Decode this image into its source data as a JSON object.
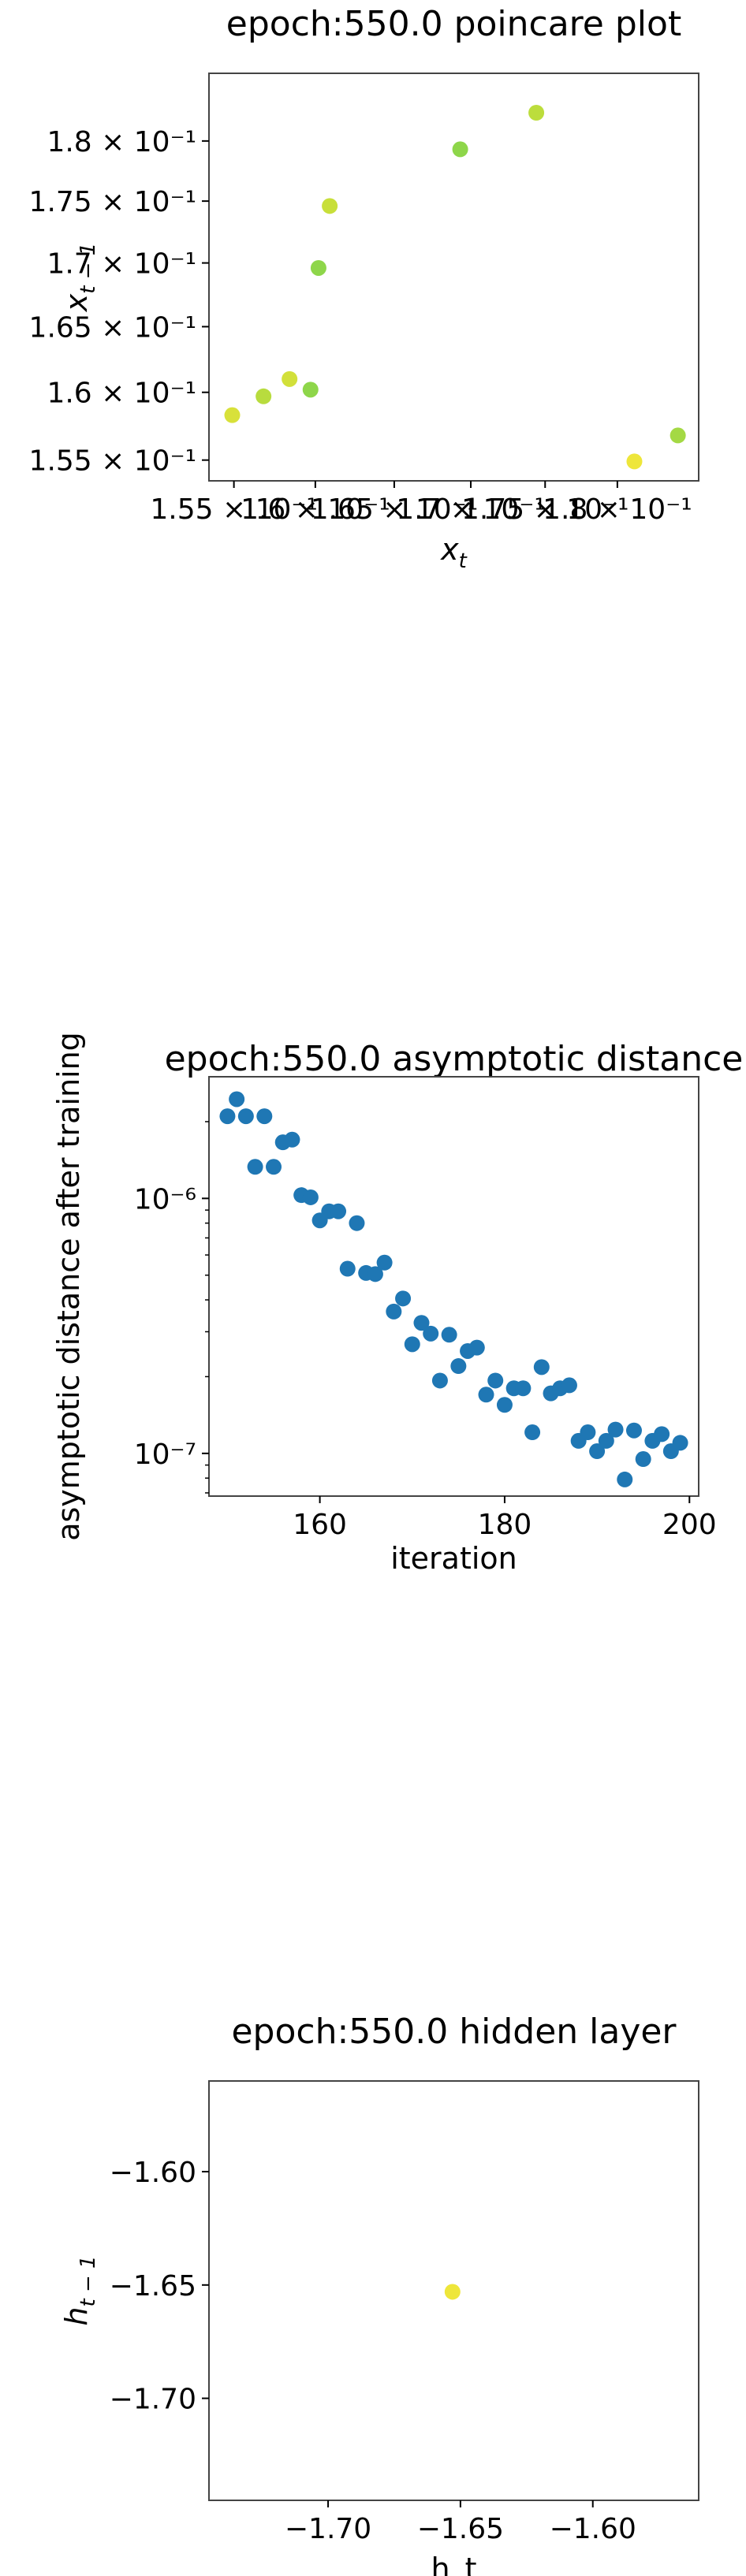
{
  "chart_data": [
    {
      "type": "scatter",
      "title": "epoch:550.0 poincare plot",
      "xlabel": "x_t",
      "ylabel": "x_{t-1}",
      "scale": "log",
      "xlim": [
        0.1535,
        0.1858
      ],
      "ylim": [
        0.1535,
        0.1858
      ],
      "x_ticks": [
        0.155,
        0.16,
        0.165,
        0.17,
        0.175,
        0.18
      ],
      "x_tick_labels": [
        "1.55 × 10⁻¹",
        "1.6 × 10⁻¹",
        "1.65 × 10⁻¹",
        "1.7 × 10⁻¹",
        "1.75 × 10⁻¹",
        "1.8 × 10⁻¹"
      ],
      "y_ticks": [
        0.155,
        0.16,
        0.165,
        0.17,
        0.175,
        0.18
      ],
      "y_tick_labels": [
        "1.55 × 10⁻¹",
        "1.6 × 10⁻¹",
        "1.65 × 10⁻¹",
        "1.7 × 10⁻¹",
        "1.75 × 10⁻¹",
        "1.8 × 10⁻¹"
      ],
      "points": [
        {
          "x": 0.1549,
          "y": 0.1583,
          "color": "#d8e13a"
        },
        {
          "x": 0.1568,
          "y": 0.1597,
          "color": "#b8dc3e"
        },
        {
          "x": 0.1584,
          "y": 0.161,
          "color": "#d2e03a"
        },
        {
          "x": 0.1597,
          "y": 0.1602,
          "color": "#8ed64a"
        },
        {
          "x": 0.1602,
          "y": 0.1696,
          "color": "#8ed64a"
        },
        {
          "x": 0.1609,
          "y": 0.1746,
          "color": "#c8df3a"
        },
        {
          "x": 0.1693,
          "y": 0.1793,
          "color": "#8ed64a"
        },
        {
          "x": 0.1744,
          "y": 0.1824,
          "color": "#bcdd3c"
        },
        {
          "x": 0.1812,
          "y": 0.1549,
          "color": "#eee63a"
        },
        {
          "x": 0.1843,
          "y": 0.1568,
          "color": "#a4d944"
        }
      ]
    },
    {
      "type": "scatter",
      "title": "epoch:550.0 asymptotic distance",
      "xlabel": "iteration",
      "ylabel": "asymptotic distance after training",
      "scale": "log-y",
      "xlim": [
        148,
        201
      ],
      "ylim": [
        6.8e-08,
        3e-06
      ],
      "x_ticks": [
        160,
        180,
        200
      ],
      "x_tick_labels": [
        "160",
        "180",
        "200"
      ],
      "y_ticks": [
        1e-07,
        1e-06
      ],
      "y_tick_labels": [
        "10⁻⁷",
        "10⁻⁶"
      ],
      "color": "#1f77b4",
      "x": [
        150,
        151,
        152,
        153,
        154,
        155,
        156,
        157,
        158,
        159,
        160,
        161,
        162,
        163,
        164,
        165,
        166,
        167,
        168,
        169,
        170,
        171,
        172,
        173,
        174,
        175,
        176,
        177,
        178,
        179,
        180,
        181,
        182,
        183,
        184,
        185,
        186,
        187,
        188,
        189,
        190,
        191,
        192,
        193,
        194,
        195,
        196,
        197,
        198,
        199
      ],
      "y": [
        2.1e-06,
        2.45e-06,
        2.1e-06,
        1.33e-06,
        2.1e-06,
        1.33e-06,
        1.66e-06,
        1.7e-06,
        1.03e-06,
        1.01e-06,
        8.2e-07,
        8.9e-07,
        8.9e-07,
        5.3e-07,
        8e-07,
        5.1e-07,
        5.05e-07,
        5.6e-07,
        3.6e-07,
        4.05e-07,
        2.68e-07,
        3.25e-07,
        2.95e-07,
        1.93e-07,
        2.92e-07,
        2.2e-07,
        2.52e-07,
        2.6e-07,
        1.7e-07,
        1.93e-07,
        1.55e-07,
        1.8e-07,
        1.8e-07,
        1.21e-07,
        2.18e-07,
        1.72e-07,
        1.8e-07,
        1.85e-07,
        1.12e-07,
        1.21e-07,
        1.02e-07,
        1.12e-07,
        1.24e-07,
        7.9e-08,
        1.23e-07,
        9.5e-08,
        1.12e-07,
        1.19e-07,
        1.02e-07,
        1.1e-07
      ]
    },
    {
      "type": "scatter",
      "title": "epoch:550.0 hidden layer",
      "xlabel": "h_t",
      "ylabel": "h_{t-1}",
      "xlim": [
        -1.745,
        -1.56
      ],
      "ylim": [
        -1.745,
        -1.56
      ],
      "x_ticks": [
        -1.7,
        -1.65,
        -1.6
      ],
      "x_tick_labels": [
        "−1.70",
        "−1.65",
        "−1.60"
      ],
      "y_ticks": [
        -1.6,
        -1.65,
        -1.7
      ],
      "y_tick_labels": [
        "−1.60",
        "−1.65",
        "−1.70"
      ],
      "points": [
        {
          "x": -1.653,
          "y": -1.653,
          "color": "#eee63a"
        }
      ]
    }
  ]
}
